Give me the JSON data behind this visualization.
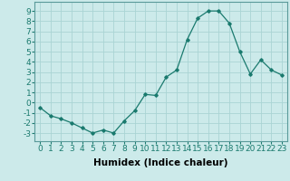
{
  "x": [
    0,
    1,
    2,
    3,
    4,
    5,
    6,
    7,
    8,
    9,
    10,
    11,
    12,
    13,
    14,
    15,
    16,
    17,
    18,
    19,
    20,
    21,
    22,
    23
  ],
  "y": [
    -0.5,
    -1.3,
    -1.6,
    -2.0,
    -2.5,
    -3.0,
    -2.7,
    -3.0,
    -1.8,
    -0.8,
    0.8,
    0.7,
    2.5,
    3.2,
    6.2,
    8.3,
    9.0,
    9.0,
    7.8,
    5.0,
    2.8,
    4.2,
    3.2,
    2.7
  ],
  "xlabel": "Humidex (Indice chaleur)",
  "xlim": [
    -0.5,
    23.5
  ],
  "ylim": [
    -3.8,
    9.9
  ],
  "ytick_values": [
    -3,
    -2,
    -1,
    0,
    1,
    2,
    3,
    4,
    5,
    6,
    7,
    8,
    9
  ],
  "line_color": "#1a7a6e",
  "marker": "D",
  "marker_size": 1.8,
  "bg_color": "#cceaea",
  "grid_color": "#aad4d4",
  "xlabel_fontsize": 7.5,
  "tick_fontsize": 6.5
}
